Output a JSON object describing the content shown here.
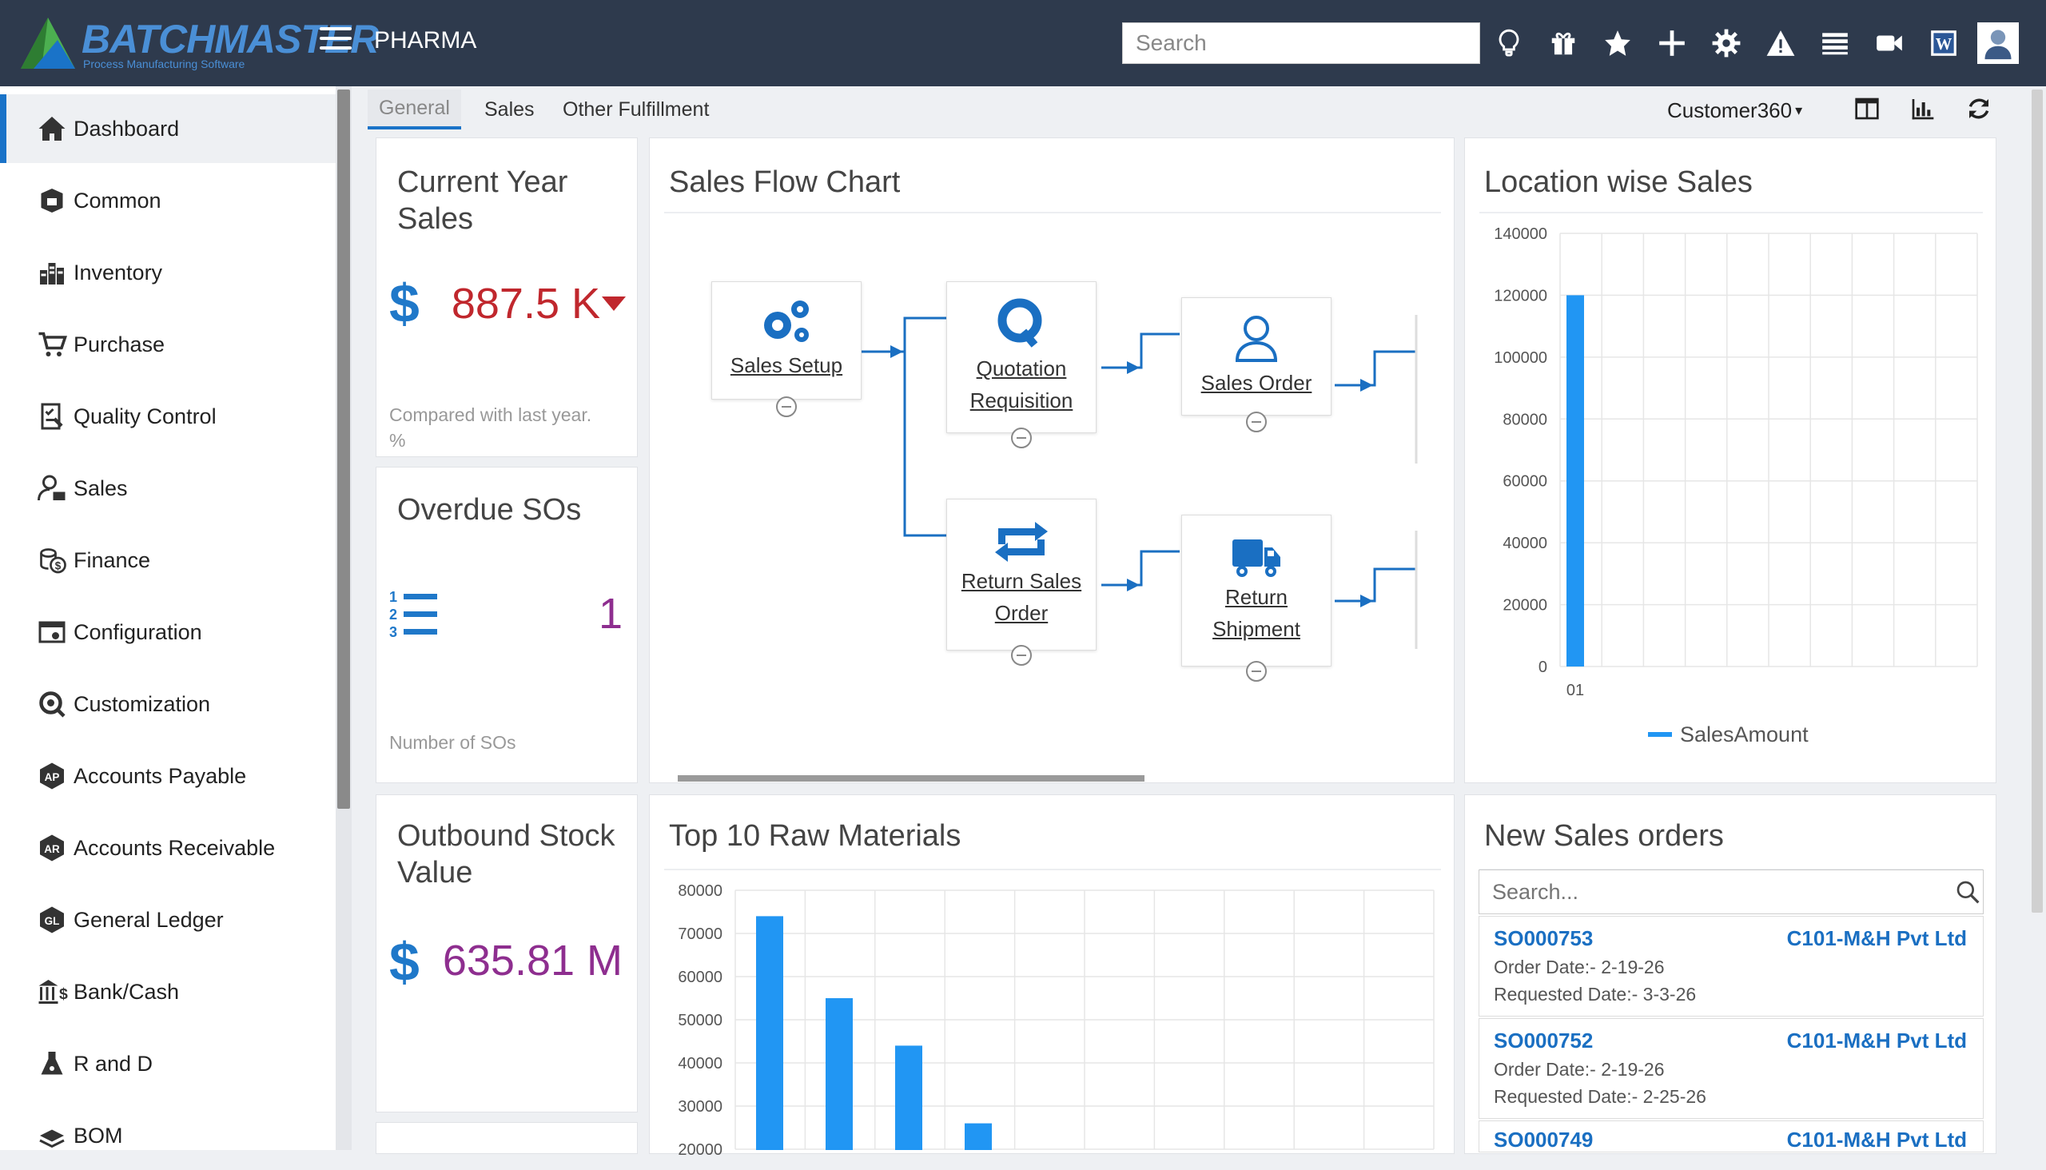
{
  "header": {
    "logo_text": "BATCHMASTER",
    "logo_sub": "Process Manufacturing Software",
    "app_name": "PHARMA",
    "search_placeholder": "Search",
    "icons": [
      "lightbulb-icon",
      "gift-icon",
      "star-icon",
      "plus-icon",
      "gear-icon",
      "warning-icon",
      "list-icon",
      "video-icon",
      "word-icon",
      "user-avatar"
    ]
  },
  "sidebar": {
    "items": [
      {
        "label": "Dashboard",
        "icon": "home-icon",
        "active": true
      },
      {
        "label": "Common",
        "icon": "common-icon"
      },
      {
        "label": "Inventory",
        "icon": "inventory-icon"
      },
      {
        "label": "Purchase",
        "icon": "cart-icon"
      },
      {
        "label": "Quality Control",
        "icon": "checklist-icon"
      },
      {
        "label": "Sales",
        "icon": "sales-person-icon"
      },
      {
        "label": "Finance",
        "icon": "finance-icon"
      },
      {
        "label": "Configuration",
        "icon": "configuration-icon"
      },
      {
        "label": "Customization",
        "icon": "customization-icon"
      },
      {
        "label": "Accounts Payable",
        "icon": "ap-icon"
      },
      {
        "label": "Accounts Receivable",
        "icon": "ar-icon"
      },
      {
        "label": "General Ledger",
        "icon": "gl-icon"
      },
      {
        "label": "Bank/Cash",
        "icon": "bank-cash-icon"
      },
      {
        "label": "R and D",
        "icon": "flask-icon"
      },
      {
        "label": "BOM",
        "icon": "bom-icon"
      }
    ]
  },
  "tabs": [
    {
      "label": "General",
      "active": true
    },
    {
      "label": "Sales"
    },
    {
      "label": "Other Fulfillment"
    }
  ],
  "toolbar": {
    "selector_label": "Customer360",
    "caret": "▾"
  },
  "kpis": {
    "current_year_sales": {
      "title": "Current Year Sales",
      "currency": "$",
      "value": "887.5 K",
      "trend": "down",
      "footnote": "Compared with last year. %",
      "value_color": "#c0272d"
    },
    "overdue_sos": {
      "title": "Overdue SOs",
      "value": "1",
      "footnote": "Number of SOs",
      "value_color": "#8e2e8f"
    },
    "outbound_stock": {
      "title": "Outbound Stock Value",
      "currency": "$",
      "value": "635.81 M",
      "value_color": "#8e2e8f"
    }
  },
  "flow_chart": {
    "title": "Sales Flow Chart",
    "nodes": {
      "sales_setup": "Sales Setup",
      "quotation": "Quotation Requisition",
      "sales_order": "Sales Order",
      "return_so": "Return Sales Order",
      "return_shipment": "Return Shipment"
    }
  },
  "location_sales": {
    "title": "Location wise Sales",
    "chart_data": {
      "type": "bar",
      "categories": [
        "01"
      ],
      "series": [
        {
          "name": "SalesAmount",
          "values": [
            120000
          ]
        }
      ],
      "ylim": [
        0,
        140000
      ],
      "yticks": [
        0,
        20000,
        40000,
        60000,
        80000,
        100000,
        120000,
        140000
      ],
      "color": "#2196f3",
      "legend": "bottom",
      "grid": true
    }
  },
  "raw_materials": {
    "title": "Top 10 Raw Materials",
    "chart_data": {
      "type": "bar",
      "categories": [
        "",
        "",
        "",
        ""
      ],
      "series": [
        {
          "values": [
            74000,
            55000,
            44000,
            26000
          ]
        }
      ],
      "ylim": [
        20000,
        80000
      ],
      "yticks": [
        20000,
        30000,
        40000,
        50000,
        60000,
        70000,
        80000
      ],
      "color": "#2196f3",
      "grid": true
    }
  },
  "orders": {
    "title": "New Sales orders",
    "search_placeholder": "Search...",
    "rows": [
      {
        "id": "SO000753",
        "customer": "C101-M&H Pvt Ltd",
        "order_date": "Order Date:- 2-19-26",
        "requested_date": "Requested Date:- 3-3-26"
      },
      {
        "id": "SO000752",
        "customer": "C101-M&H Pvt Ltd",
        "order_date": "Order Date:- 2-19-26",
        "requested_date": "Requested Date:- 2-25-26"
      },
      {
        "id": "SO000749",
        "customer": "C101-M&H Pvt Ltd",
        "order_date": "",
        "requested_date": ""
      }
    ]
  }
}
